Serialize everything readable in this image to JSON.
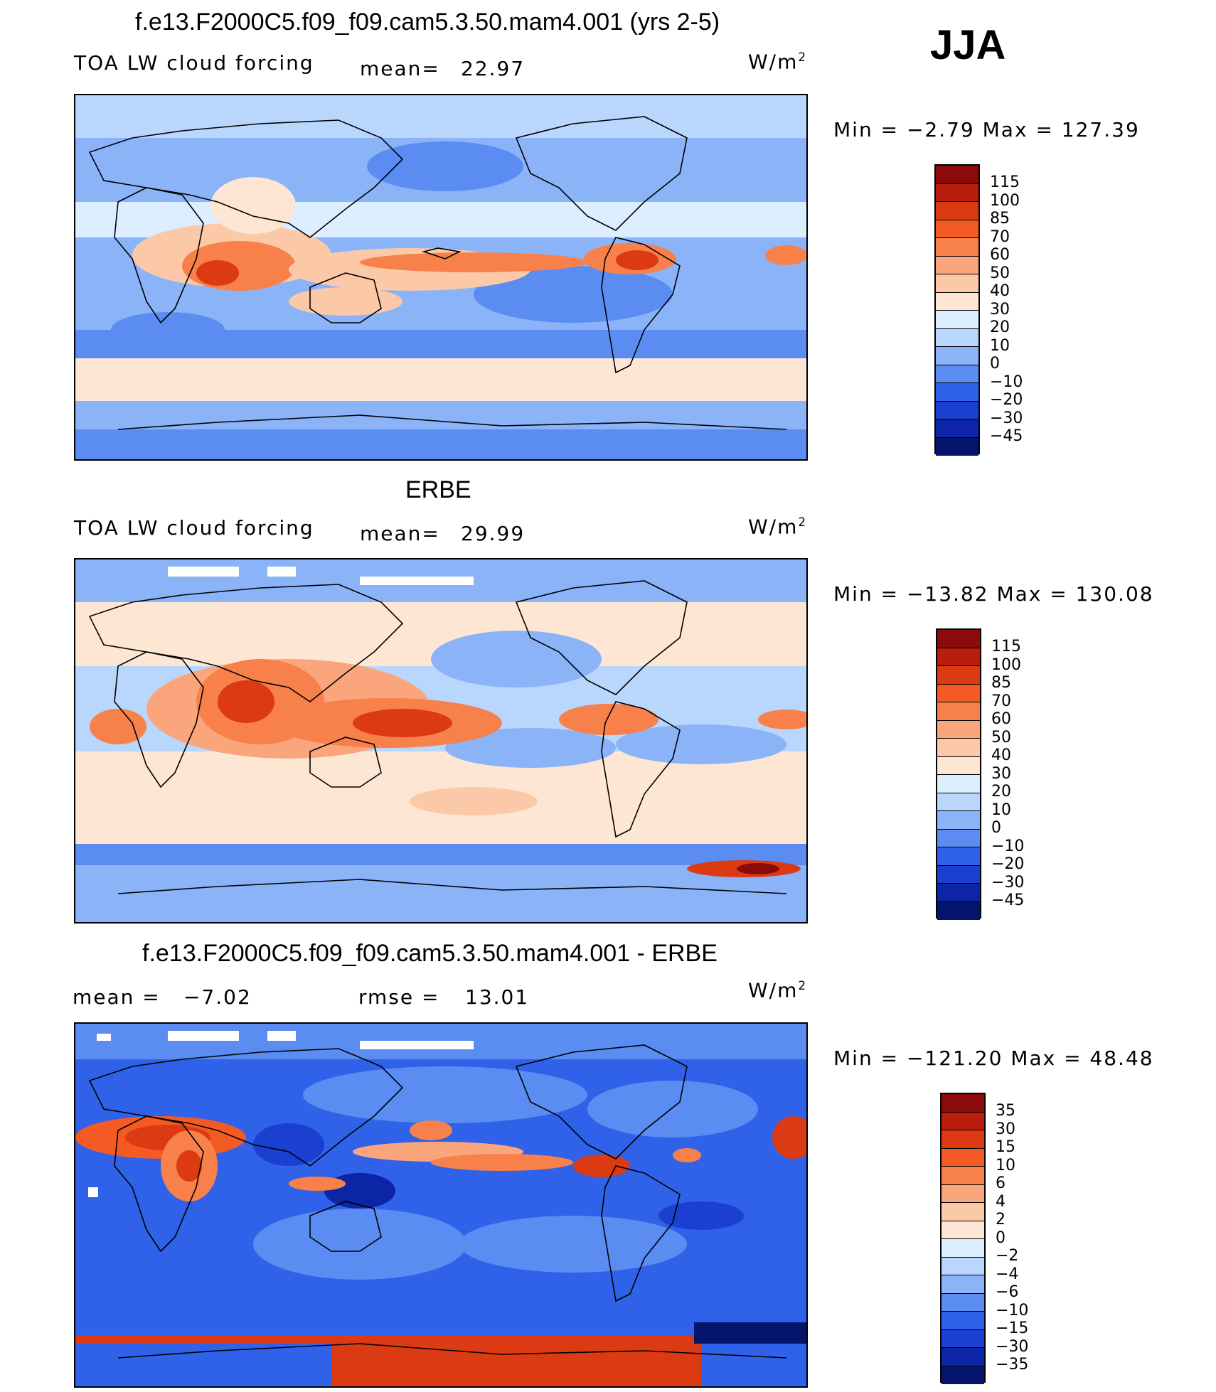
{
  "season": "JJA",
  "panels": [
    {
      "title": "f.e13.F2000C5.f09_f09.cam5.3.50.mam4.001 (yrs 2-5)",
      "left_label": "TOA LW cloud forcing",
      "mid_label": "mean=",
      "mid_value": "22.97",
      "units_base": "W/m",
      "units_exp": "2",
      "minmax": "Min  =   −2.79  Max  =  127.39",
      "colorbar_labels": [
        "115",
        "100",
        "85",
        "70",
        "60",
        "50",
        "40",
        "30",
        "20",
        "10",
        "0",
        "−10",
        "−20",
        "−30",
        "−45"
      ],
      "colorbar_colors": [
        "#8b0a0a",
        "#b81d0d",
        "#dc3a12",
        "#f35a24",
        "#f8804a",
        "#fba57c",
        "#fcc9a8",
        "#fde7d4",
        "#dceeff",
        "#b9d6fd",
        "#8ab3f8",
        "#5a8cf2",
        "#2f62e8",
        "#1a3fd1",
        "#0c24a6",
        "#03146a"
      ]
    },
    {
      "title": "ERBE",
      "left_label": "TOA LW cloud forcing",
      "mid_label": "mean=",
      "mid_value": "29.99",
      "units_base": "W/m",
      "units_exp": "2",
      "minmax": "Min  = −13.82  Max  =  130.08",
      "colorbar_labels": [
        "115",
        "100",
        "85",
        "70",
        "60",
        "50",
        "40",
        "30",
        "20",
        "10",
        "0",
        "−10",
        "−20",
        "−30",
        "−45"
      ],
      "colorbar_colors": [
        "#8b0a0a",
        "#b81d0d",
        "#dc3a12",
        "#f35a24",
        "#f8804a",
        "#fba57c",
        "#fcc9a8",
        "#fde7d4",
        "#dceeff",
        "#b9d6fd",
        "#8ab3f8",
        "#5a8cf2",
        "#2f62e8",
        "#1a3fd1",
        "#0c24a6",
        "#03146a"
      ]
    },
    {
      "title": "f.e13.F2000C5.f09_f09.cam5.3.50.mam4.001 - ERBE",
      "left_label": "mean  =",
      "left_value": "−7.02",
      "mid_label": "rmse  =",
      "mid_value": "13.01",
      "units_base": "W/m",
      "units_exp": "2",
      "minmax": "Min  = −121.20  Max  =   48.48",
      "colorbar_labels": [
        "35",
        "30",
        "15",
        "10",
        "6",
        "4",
        "2",
        "0",
        "−2",
        "−4",
        "−6",
        "−10",
        "−15",
        "−30",
        "−35"
      ],
      "colorbar_colors": [
        "#8b0a0a",
        "#b81d0d",
        "#dc3a12",
        "#f35a24",
        "#f8804a",
        "#fba57c",
        "#fcc9a8",
        "#fde7d4",
        "#dceeff",
        "#b9d6fd",
        "#8ab3f8",
        "#5a8cf2",
        "#2f62e8",
        "#1a3fd1",
        "#0c24a6",
        "#03146a"
      ]
    }
  ]
}
